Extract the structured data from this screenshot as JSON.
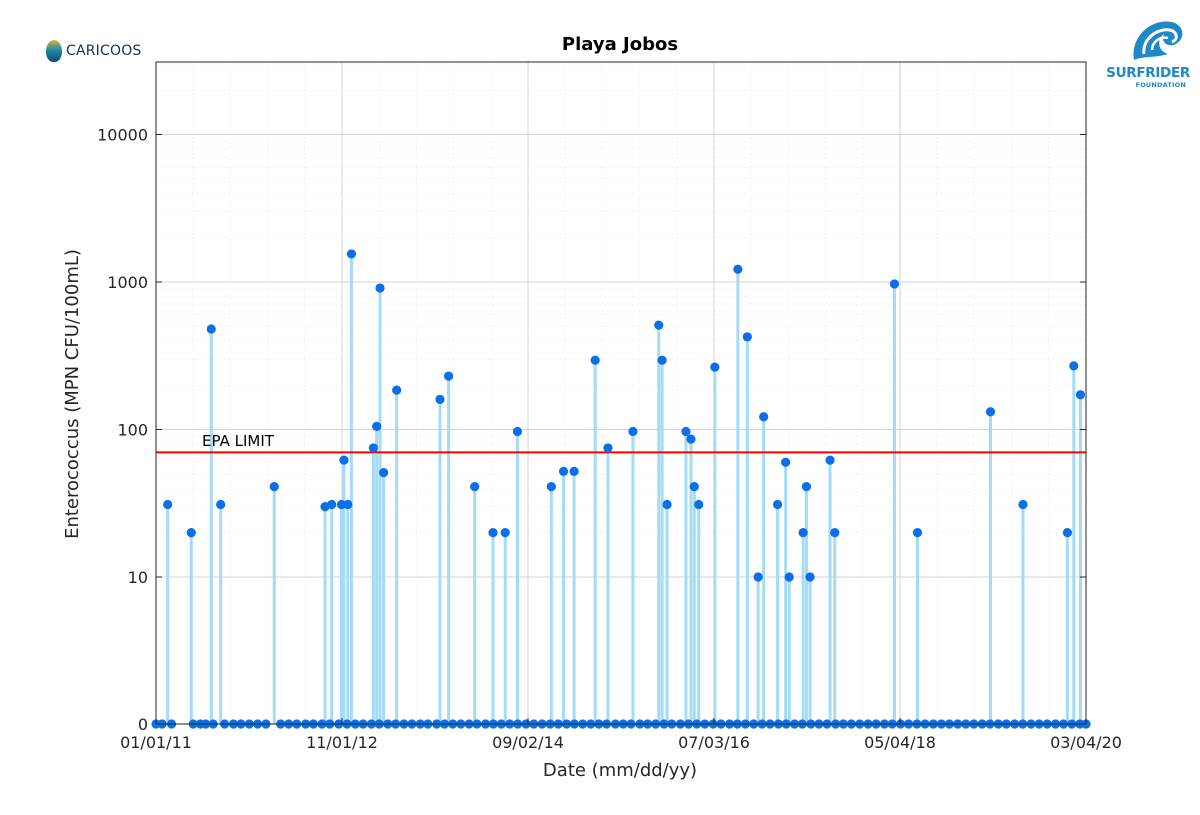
{
  "logos": {
    "left": "CARICOOS",
    "right_brand": "SURFRIDER",
    "right_sub": "FOUNDATION"
  },
  "chart_data": {
    "type": "scatter",
    "style": "stem",
    "title": "Playa Jobos",
    "xlabel": "Date (mm/dd/yy)",
    "ylabel": "Enterococcus (MPN CFU/100mL)",
    "yscale": "log",
    "ylim": [
      0,
      30000
    ],
    "xlim": [
      "2011-01-01",
      "2020-03-04"
    ],
    "x_ticks": [
      "01/01/11",
      "11/01/12",
      "09/02/14",
      "07/03/16",
      "05/04/18",
      "03/04/20"
    ],
    "y_ticks": [
      "0",
      "10",
      "100",
      "1000",
      "10000"
    ],
    "grid": true,
    "colors": {
      "marker": "#0a6fe8",
      "stem": "#a4dbf7",
      "limit": "#ff0000"
    },
    "reference_line": {
      "label": "EPA LIMIT",
      "value": 70
    },
    "points": [
      {
        "date": "2011-01-01",
        "value": 0
      },
      {
        "date": "2011-01-23",
        "value": 0
      },
      {
        "date": "2011-02-12",
        "value": 31
      },
      {
        "date": "2011-02-26",
        "value": 0
      },
      {
        "date": "2011-05-08",
        "value": 20
      },
      {
        "date": "2011-05-15",
        "value": 0
      },
      {
        "date": "2011-06-10",
        "value": 0
      },
      {
        "date": "2011-06-29",
        "value": 0
      },
      {
        "date": "2011-07-19",
        "value": 480
      },
      {
        "date": "2011-07-26",
        "value": 0
      },
      {
        "date": "2011-08-22",
        "value": 31
      },
      {
        "date": "2011-09-05",
        "value": 0
      },
      {
        "date": "2011-10-07",
        "value": 0
      },
      {
        "date": "2011-11-03",
        "value": 0
      },
      {
        "date": "2011-12-03",
        "value": 0
      },
      {
        "date": "2012-01-02",
        "value": 0
      },
      {
        "date": "2012-02-01",
        "value": 0
      },
      {
        "date": "2012-03-02",
        "value": 41
      },
      {
        "date": "2012-03-25",
        "value": 0
      },
      {
        "date": "2012-04-23",
        "value": 0
      },
      {
        "date": "2012-05-22",
        "value": 0
      },
      {
        "date": "2012-06-23",
        "value": 0
      },
      {
        "date": "2012-07-21",
        "value": 0
      },
      {
        "date": "2012-08-21",
        "value": 0
      },
      {
        "date": "2012-09-18",
        "value": 0
      },
      {
        "date": "2012-10-20",
        "value": 0
      },
      {
        "date": "2012-11-19",
        "value": 0
      },
      {
        "date": "2012-12-19",
        "value": 0
      },
      {
        "date": "2013-01-16",
        "value": 0
      },
      {
        "date": "2013-02-15",
        "value": 0
      },
      {
        "date": "2013-03-15",
        "value": 0
      },
      {
        "date": "2013-04-15",
        "value": 0
      },
      {
        "date": "2013-05-13",
        "value": 0
      },
      {
        "date": "2013-06-12",
        "value": 0
      },
      {
        "date": "2013-07-11",
        "value": 0
      },
      {
        "date": "2013-08-10",
        "value": 0
      },
      {
        "date": "2013-09-06",
        "value": 0
      },
      {
        "date": "2013-10-08",
        "value": 0
      },
      {
        "date": "2013-11-05",
        "value": 0
      },
      {
        "date": "2013-12-05",
        "value": 0
      },
      {
        "date": "2014-01-03",
        "value": 0
      },
      {
        "date": "2014-02-02",
        "value": 0
      },
      {
        "date": "2014-03-02",
        "value": 0
      },
      {
        "date": "2014-04-02",
        "value": 0
      },
      {
        "date": "2014-04-30",
        "value": 0
      },
      {
        "date": "2014-05-29",
        "value": 0
      },
      {
        "date": "2014-06-28",
        "value": 0
      },
      {
        "date": "2014-07-27",
        "value": 0
      },
      {
        "date": "2014-08-26",
        "value": 0
      },
      {
        "date": "2014-09-23",
        "value": 0
      },
      {
        "date": "2014-10-23",
        "value": 0
      },
      {
        "date": "2014-11-21",
        "value": 0
      },
      {
        "date": "2014-12-20",
        "value": 0
      },
      {
        "date": "2015-01-19",
        "value": 0
      },
      {
        "date": "2015-02-16",
        "value": 0
      },
      {
        "date": "2015-03-18",
        "value": 0
      },
      {
        "date": "2015-04-16",
        "value": 0
      },
      {
        "date": "2015-05-15",
        "value": 0
      },
      {
        "date": "2015-06-12",
        "value": 0
      },
      {
        "date": "2015-07-14",
        "value": 0
      },
      {
        "date": "2015-08-11",
        "value": 0
      },
      {
        "date": "2015-09-08",
        "value": 0
      },
      {
        "date": "2015-10-10",
        "value": 0
      },
      {
        "date": "2015-11-07",
        "value": 0
      },
      {
        "date": "2015-12-06",
        "value": 0
      },
      {
        "date": "2016-01-05",
        "value": 0
      },
      {
        "date": "2016-02-02",
        "value": 0
      },
      {
        "date": "2016-03-04",
        "value": 0
      },
      {
        "date": "2016-04-02",
        "value": 0
      },
      {
        "date": "2016-05-02",
        "value": 0
      },
      {
        "date": "2016-05-31",
        "value": 0
      },
      {
        "date": "2016-06-30",
        "value": 0
      },
      {
        "date": "2016-07-28",
        "value": 0
      },
      {
        "date": "2016-08-28",
        "value": 0
      },
      {
        "date": "2016-09-25",
        "value": 0
      },
      {
        "date": "2016-10-24",
        "value": 0
      },
      {
        "date": "2016-11-23",
        "value": 0
      },
      {
        "date": "2016-12-23",
        "value": 0
      },
      {
        "date": "2017-01-21",
        "value": 0
      },
      {
        "date": "2017-02-20",
        "value": 0
      },
      {
        "date": "2017-03-20",
        "value": 0
      },
      {
        "date": "2017-04-19",
        "value": 0
      },
      {
        "date": "2017-05-17",
        "value": 0
      },
      {
        "date": "2017-06-17",
        "value": 0
      },
      {
        "date": "2017-07-16",
        "value": 0
      },
      {
        "date": "2017-08-14",
        "value": 0
      },
      {
        "date": "2017-09-14",
        "value": 0
      },
      {
        "date": "2017-10-12",
        "value": 0
      },
      {
        "date": "2017-11-10",
        "value": 0
      },
      {
        "date": "2017-12-10",
        "value": 0
      },
      {
        "date": "2018-01-09",
        "value": 0
      },
      {
        "date": "2018-02-07",
        "value": 0
      },
      {
        "date": "2018-03-09",
        "value": 0
      },
      {
        "date": "2018-04-06",
        "value": 0
      },
      {
        "date": "2018-05-06",
        "value": 0
      },
      {
        "date": "2018-06-04",
        "value": 0
      },
      {
        "date": "2018-07-04",
        "value": 0
      },
      {
        "date": "2018-08-02",
        "value": 0
      },
      {
        "date": "2018-09-01",
        "value": 0
      },
      {
        "date": "2018-09-30",
        "value": 0
      },
      {
        "date": "2018-10-29",
        "value": 0
      },
      {
        "date": "2018-11-28",
        "value": 0
      },
      {
        "date": "2018-12-27",
        "value": 0
      },
      {
        "date": "2019-01-25",
        "value": 0
      },
      {
        "date": "2019-02-24",
        "value": 0
      },
      {
        "date": "2019-03-24",
        "value": 0
      },
      {
        "date": "2019-04-23",
        "value": 0
      },
      {
        "date": "2019-05-22",
        "value": 0
      },
      {
        "date": "2019-06-21",
        "value": 0
      },
      {
        "date": "2019-07-20",
        "value": 0
      },
      {
        "date": "2019-08-19",
        "value": 0
      },
      {
        "date": "2019-09-17",
        "value": 0
      },
      {
        "date": "2019-10-16",
        "value": 0
      },
      {
        "date": "2019-11-15",
        "value": 0
      },
      {
        "date": "2019-12-14",
        "value": 0
      },
      {
        "date": "2020-01-13",
        "value": 0
      },
      {
        "date": "2020-02-11",
        "value": 0
      },
      {
        "date": "2020-03-04",
        "value": 0
      },
      {
        "date": "2012-09-01",
        "value": 30
      },
      {
        "date": "2012-09-25",
        "value": 31
      },
      {
        "date": "2012-10-30",
        "value": 31
      },
      {
        "date": "2012-11-08",
        "value": 62
      },
      {
        "date": "2012-11-22",
        "value": 31
      },
      {
        "date": "2012-12-05",
        "value": 1550
      },
      {
        "date": "2013-02-22",
        "value": 75
      },
      {
        "date": "2013-03-06",
        "value": 105
      },
      {
        "date": "2013-03-18",
        "value": 910
      },
      {
        "date": "2013-03-31",
        "value": 51
      },
      {
        "date": "2013-05-17",
        "value": 185
      },
      {
        "date": "2013-10-20",
        "value": 160
      },
      {
        "date": "2013-11-20",
        "value": 230
      },
      {
        "date": "2014-02-22",
        "value": 41
      },
      {
        "date": "2014-04-29",
        "value": 20
      },
      {
        "date": "2014-06-12",
        "value": 20
      },
      {
        "date": "2014-07-26",
        "value": 97
      },
      {
        "date": "2014-11-25",
        "value": 41
      },
      {
        "date": "2015-01-08",
        "value": 52
      },
      {
        "date": "2015-02-15",
        "value": 52
      },
      {
        "date": "2015-05-02",
        "value": 295
      },
      {
        "date": "2015-06-17",
        "value": 75
      },
      {
        "date": "2015-09-15",
        "value": 97
      },
      {
        "date": "2015-12-17",
        "value": 510
      },
      {
        "date": "2015-12-29",
        "value": 295
      },
      {
        "date": "2016-01-16",
        "value": 31
      },
      {
        "date": "2016-03-24",
        "value": 97
      },
      {
        "date": "2016-04-11",
        "value": 86
      },
      {
        "date": "2016-04-23",
        "value": 41
      },
      {
        "date": "2016-05-09",
        "value": 31
      },
      {
        "date": "2016-07-06",
        "value": 265
      },
      {
        "date": "2016-09-27",
        "value": 1220
      },
      {
        "date": "2016-10-31",
        "value": 425
      },
      {
        "date": "2016-12-09",
        "value": 10
      },
      {
        "date": "2016-12-29",
        "value": 122
      },
      {
        "date": "2017-02-17",
        "value": 31
      },
      {
        "date": "2017-03-18",
        "value": 60
      },
      {
        "date": "2017-03-31",
        "value": 10
      },
      {
        "date": "2017-05-20",
        "value": 20
      },
      {
        "date": "2017-06-01",
        "value": 41
      },
      {
        "date": "2017-06-14",
        "value": 10
      },
      {
        "date": "2017-08-25",
        "value": 62
      },
      {
        "date": "2017-09-11",
        "value": 20
      },
      {
        "date": "2018-04-14",
        "value": 970
      },
      {
        "date": "2018-07-06",
        "value": 20
      },
      {
        "date": "2019-03-26",
        "value": 132
      },
      {
        "date": "2019-07-21",
        "value": 31
      },
      {
        "date": "2019-12-28",
        "value": 20
      },
      {
        "date": "2020-01-20",
        "value": 270
      },
      {
        "date": "2020-02-13",
        "value": 172
      }
    ]
  }
}
